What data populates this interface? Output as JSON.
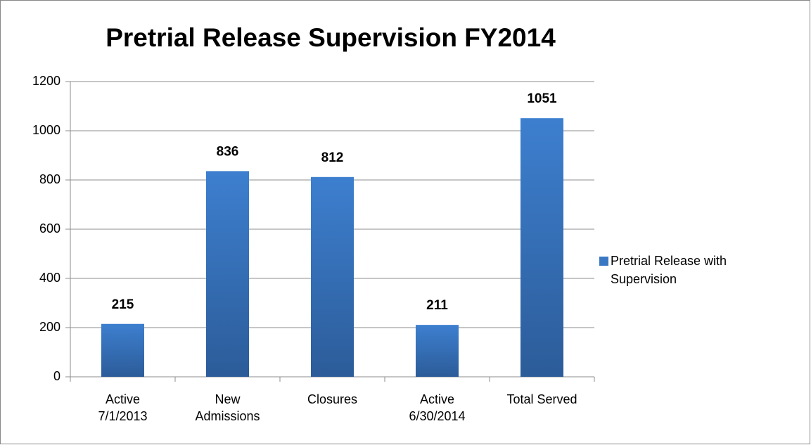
{
  "chart_data": {
    "type": "bar",
    "title": "Pretrial Release Supervision FY2014",
    "categories": [
      "Active 7/1/2013",
      "New Admissions",
      "Closures",
      "Active 6/30/2014",
      "Total Served"
    ],
    "series": [
      {
        "name": "Pretrial Release with Supervision",
        "color": "#3a78c4",
        "values": [
          215,
          836,
          812,
          211,
          1051
        ]
      }
    ],
    "ylim": [
      0,
      1200
    ],
    "yticks": [
      0,
      200,
      400,
      600,
      800,
      1000,
      1200
    ],
    "grid": true,
    "legend": "right",
    "data_labels": true
  }
}
